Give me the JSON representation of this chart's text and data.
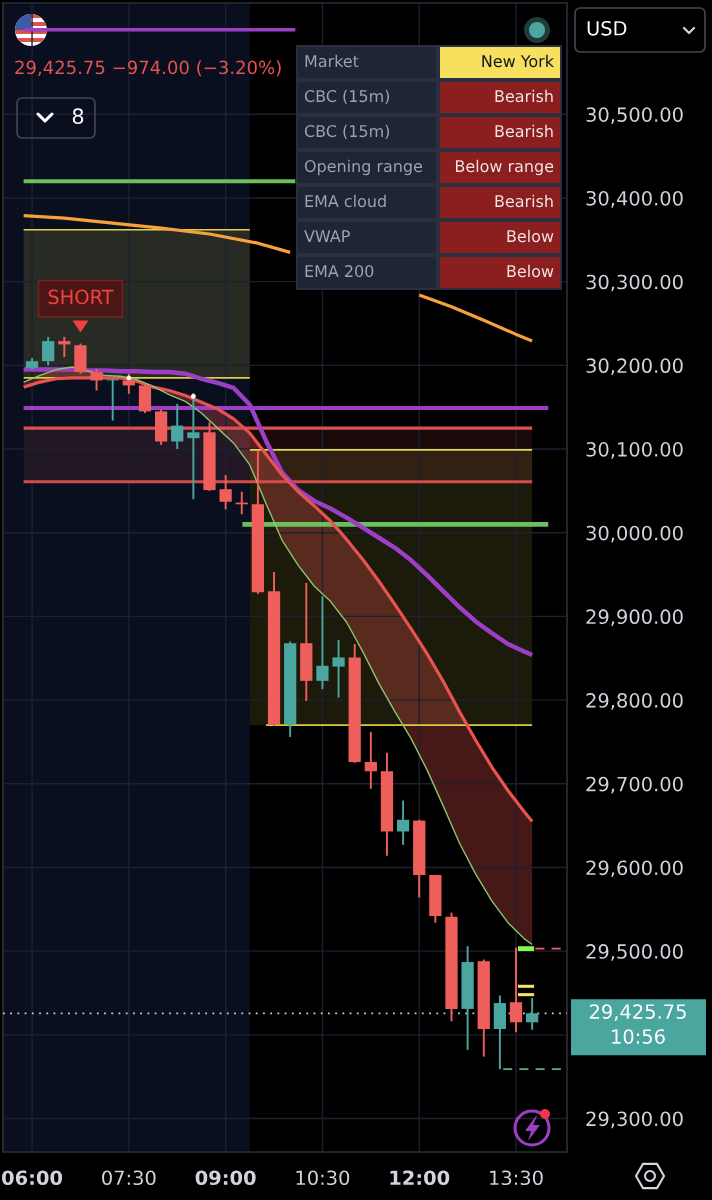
{
  "chart_data": [
    {
      "type": "candlestick",
      "x": [
        6.0,
        6.25,
        6.5,
        6.75,
        7.0,
        7.25,
        7.5,
        7.75,
        8.0,
        8.25,
        8.5,
        8.75,
        9.0,
        9.25,
        9.5,
        9.75,
        10.0,
        10.25,
        10.5,
        10.75,
        11.0,
        11.25,
        11.5,
        11.75,
        12.0,
        12.25,
        12.5,
        12.75,
        13.0,
        13.25,
        13.5,
        13.75
      ],
      "ohlc": [
        [
          30197,
          30209,
          30195,
          30205
        ],
        [
          30205,
          30234,
          30200,
          30229
        ],
        [
          30229,
          30234,
          30210,
          30225
        ],
        [
          30224,
          30226,
          30190,
          30192
        ],
        [
          30192,
          30196,
          30170,
          30182
        ],
        [
          30182,
          30184,
          30134,
          30183
        ],
        [
          30182,
          30190,
          30166,
          30176
        ],
        [
          30176,
          30178,
          30143,
          30145
        ],
        [
          30145,
          30147,
          30105,
          30109
        ],
        [
          30109,
          30154,
          30100,
          30128
        ],
        [
          30113,
          30167,
          30040,
          30120
        ],
        [
          30120,
          30132,
          30050,
          30051
        ],
        [
          30052,
          30069,
          30028,
          30037
        ],
        [
          30036,
          30049,
          30022,
          30034
        ],
        [
          30034,
          30098,
          29927,
          29929
        ],
        [
          29930,
          29953,
          29769,
          29771
        ],
        [
          29771,
          29870,
          29756,
          29868
        ],
        [
          29868,
          29940,
          29799,
          29823
        ],
        [
          29823,
          29924,
          29813,
          29841
        ],
        [
          29840,
          29872,
          29803,
          29851
        ],
        [
          29851,
          29867,
          29725,
          29726
        ],
        [
          29726,
          29762,
          29694,
          29715
        ],
        [
          29715,
          29737,
          29614,
          29643
        ],
        [
          29643,
          29680,
          29627,
          29657
        ],
        [
          29656,
          29657,
          29564,
          29591
        ],
        [
          29591,
          29591,
          29534,
          29542
        ],
        [
          29541,
          29546,
          29416,
          29431
        ],
        [
          29431,
          29506,
          29382,
          29487
        ],
        [
          29488,
          29490,
          29374,
          29407
        ],
        [
          29407,
          29447,
          29359,
          29438
        ],
        [
          29439,
          29504,
          29403,
          29415
        ],
        [
          29415,
          29444,
          29406,
          29425.75
        ]
      ],
      "colors": [
        "#4ba69f",
        "#4ba69f",
        "#ee5f5b",
        "#ee5f5b",
        "#ee5f5b",
        "#4ba69f",
        "#ee5f5b",
        "#ee5f5b",
        "#ee5f5b",
        "#4ba69f",
        "#4ba69f",
        "#ee5f5b",
        "#ee5f5b",
        "#ee5f5b",
        "#ee5f5b",
        "#ee5f5b",
        "#4ba69f",
        "#ee5f5b",
        "#4ba69f",
        "#4ba69f",
        "#ee5f5b",
        "#ee5f5b",
        "#ee5f5b",
        "#4ba69f",
        "#ee5f5b",
        "#ee5f5b",
        "#ee5f5b",
        "#4ba69f",
        "#ee5f5b",
        "#4ba69f",
        "#ee5f5b",
        "#4ba69f"
      ],
      "xlim": [
        5.55,
        14.29
      ],
      "ylim": [
        29260,
        30633
      ],
      "xticks": [
        {
          "value": 6,
          "label": "06:00"
        },
        {
          "value": 7.5,
          "label": "07:30"
        },
        {
          "value": 9,
          "label": "09:00"
        },
        {
          "value": 10.5,
          "label": "10:30"
        },
        {
          "value": 12,
          "label": "12:00"
        },
        {
          "value": 13.5,
          "label": "13:30"
        }
      ],
      "yticks": [
        {
          "value": 29300,
          "label": "29,300.00"
        },
        {
          "value": 29400,
          "label": null
        },
        {
          "value": 29500,
          "label": "29,500.00"
        },
        {
          "value": 29600,
          "label": "29,600.00"
        },
        {
          "value": 29700,
          "label": "29,700.00"
        },
        {
          "value": 29800,
          "label": "29,800.00"
        },
        {
          "value": 29900,
          "label": "29,900.00"
        },
        {
          "value": 30000,
          "label": "30,000.00"
        },
        {
          "value": 30100,
          "label": "30,100.00"
        },
        {
          "value": 30200,
          "label": "30,200.00"
        },
        {
          "value": 30300,
          "label": "30,300.00"
        },
        {
          "value": 30400,
          "label": "30,400.00"
        },
        {
          "value": 30500,
          "label": "30,500.00"
        }
      ],
      "grid": true,
      "bands": [
        {
          "axis": "x",
          "from": 5.55,
          "to": 9.375,
          "color": "#0a0f1f"
        }
      ],
      "ref_lines": [
        {
          "axis": "y",
          "value": 29425.75,
          "label": "29,425.75",
          "color": "#c9ccd4",
          "line_style": "dotted"
        }
      ],
      "annotations": [
        "29,425.75 −974.00 (−3.20%)",
        "8",
        "USD",
        "10:56",
        {
          "text": "SHORT",
          "x": 6.75,
          "y": 30226
        }
      ],
      "series": [
        {
          "type": "line",
          "color": "#e3d34a",
          "x": [
            5.87,
            9.375
          ],
          "values": [
            30362,
            30362
          ],
          "lower": [
            30185,
            30185
          ],
          "upper": [
            30362,
            30362
          ]
        },
        {
          "type": "line",
          "color": "#dccd46",
          "x": [
            5.87,
            9.375
          ],
          "values": [
            30185,
            30185
          ]
        },
        {
          "type": "line",
          "color": "#e6d650",
          "x": [
            9.375,
            13.75
          ],
          "values": [
            30099,
            30099
          ],
          "lower": [
            29770,
            29770
          ],
          "upper": [
            30099,
            30099
          ]
        },
        {
          "type": "line",
          "color": "#d9ca44",
          "x": [
            9.625,
            13.75
          ],
          "values": [
            29770,
            29770
          ]
        },
        {
          "type": "line",
          "color": "#d8504f",
          "x": [
            5.87,
            13.75
          ],
          "values": [
            30125,
            30125
          ],
          "lower": [
            30061,
            30061
          ],
          "upper": [
            30125,
            30125
          ]
        },
        {
          "type": "line",
          "color": "#d24c4b",
          "x": [
            5.87,
            13.75
          ],
          "values": [
            30061,
            30061
          ]
        },
        {
          "type": "line",
          "color": "#9b3fc4",
          "x": [
            5.87,
            14.0
          ],
          "values": [
            30149,
            30149
          ]
        },
        {
          "type": "line",
          "color": "#6cbf5c",
          "x": [
            9.26,
            14.0
          ],
          "values": [
            30010,
            30010
          ]
        },
        {
          "type": "line",
          "color": "#6cbf5c",
          "x": [
            5.87,
            10.08
          ],
          "values": [
            30420,
            30420
          ]
        },
        {
          "type": "line",
          "color": "#9b3fc4",
          "x": [
            5.87,
            10.08
          ],
          "values": [
            30601,
            30601
          ]
        },
        {
          "type": "line",
          "color": "#f7a13a",
          "x": [
            5.87,
            6.5,
            7.25,
            8.0,
            8.75,
            9.5,
            10.0,
            11.0,
            12.0,
            12.5,
            13.0,
            13.5,
            13.75
          ],
          "values": [
            30379,
            30376,
            30370,
            30364,
            30357,
            30346,
            30335,
            null,
            30284,
            30270,
            30254,
            30237,
            30229
          ]
        },
        {
          "type": "line",
          "color": "#9b3fc4",
          "x": [
            5.87,
            6.125,
            6.375,
            6.625,
            6.875,
            7.125,
            7.375,
            7.625,
            7.875,
            8.125,
            8.375,
            8.625,
            8.875,
            9.125,
            9.375,
            9.625,
            9.875,
            10.125,
            10.375,
            10.625,
            10.875,
            11.125,
            11.375,
            11.625,
            11.875,
            12.125,
            12.375,
            12.625,
            12.875,
            13.125,
            13.375,
            13.625,
            13.75
          ],
          "values": [
            30195,
            30195,
            30195,
            30195,
            30194,
            30194,
            30193,
            30193,
            30192,
            30192,
            30190,
            30184,
            30179,
            30173,
            30153,
            30110,
            30072,
            30051,
            30038,
            30029,
            30018,
            30006,
            29994,
            29982,
            29967,
            29949,
            29930,
            29911,
            29894,
            29880,
            29867,
            29858,
            29854
          ]
        },
        {
          "type": "line",
          "color": "#e8524f",
          "x": [
            5.87,
            6.125,
            6.375,
            6.625,
            6.875,
            7.125,
            7.375,
            7.625,
            7.875,
            8.125,
            8.375,
            8.625,
            8.875,
            9.125,
            9.375,
            9.625,
            9.875,
            10.125,
            10.375,
            10.625,
            10.875,
            11.125,
            11.375,
            11.625,
            11.875,
            12.125,
            12.375,
            12.625,
            12.875,
            13.125,
            13.375,
            13.625,
            13.75
          ],
          "values": [
            30174,
            30180,
            30184,
            30185,
            30185,
            30185,
            30185,
            30181,
            30174,
            30170,
            30164,
            30156,
            30148,
            30136,
            30119,
            30094,
            30069,
            30049,
            30032,
            30014,
            29992,
            29968,
            29942,
            29914,
            29885,
            29855,
            29822,
            29786,
            29752,
            29720,
            29692,
            29667,
            29655
          ],
          "lower": [
            30180,
            30188,
            30195,
            30198,
            30193,
            30188,
            30187,
            30183,
            30175,
            30165,
            30157,
            30143,
            30125,
            30107,
            30081,
            30035,
            29991,
            29961,
            29936,
            29918,
            29893,
            29858,
            29820,
            29786,
            29754,
            29716,
            29673,
            29629,
            29592,
            29560,
            29534,
            29515,
            29508
          ],
          "upper": [
            30174,
            30180,
            30184,
            30185,
            30185,
            30185,
            30185,
            30181,
            30174,
            30170,
            30164,
            30156,
            30148,
            30136,
            30119,
            30094,
            30069,
            30049,
            30032,
            30014,
            29992,
            29968,
            29942,
            29914,
            29885,
            29855,
            29822,
            29786,
            29752,
            29720,
            29692,
            29667,
            29655
          ]
        },
        {
          "type": "line",
          "color": "#8cc46a",
          "x": [
            5.87,
            6.125,
            6.375,
            6.625,
            6.875,
            7.125,
            7.375,
            7.625,
            7.875,
            8.125,
            8.375,
            8.625,
            8.875,
            9.125,
            9.375,
            9.625,
            9.875,
            10.125,
            10.375,
            10.625,
            10.875,
            11.125,
            11.375,
            11.625,
            11.875,
            12.125,
            12.375,
            12.625,
            12.875,
            13.125,
            13.375,
            13.625,
            13.75
          ],
          "values": [
            30180,
            30188,
            30195,
            30198,
            30193,
            30188,
            30187,
            30183,
            30175,
            30165,
            30157,
            30143,
            30125,
            30107,
            30081,
            30035,
            29991,
            29961,
            29936,
            29918,
            29893,
            29858,
            29820,
            29786,
            29754,
            29716,
            29673,
            29629,
            29592,
            29560,
            29534,
            29515,
            29508
          ]
        },
        {
          "type": "scatter",
          "color": "#ffffff",
          "marker": "circle",
          "x": [
            7.5,
            8.5
          ],
          "values": [
            30185,
            30163
          ]
        },
        {
          "type": "line",
          "color": "#5fae7e",
          "line_style": "dashed",
          "x": [
            13.3,
            14.29
          ],
          "values": [
            29359,
            29359
          ]
        },
        {
          "type": "line",
          "color": "#f0625e",
          "line_style": "dashed",
          "x": [
            13.8,
            14.25
          ],
          "values": [
            29503,
            29503
          ]
        },
        {
          "type": "line",
          "color": "#8cf55a",
          "x": [
            13.53,
            13.78
          ],
          "values": [
            29503,
            29503
          ]
        },
        {
          "type": "line",
          "color": "#f5e463",
          "x": [
            13.53,
            13.78
          ],
          "values": [
            29458,
            29458
          ]
        },
        {
          "type": "line",
          "color": "#f5e463",
          "x": [
            13.53,
            13.78
          ],
          "values": [
            29448,
            29448
          ]
        }
      ]
    },
    {
      "type": "other",
      "categories": [
        "Market",
        "CBC (15m)",
        "CBC (15m)",
        "Opening range",
        "EMA cloud",
        "VWAP",
        "EMA 200"
      ],
      "annotations": [
        "New York",
        "Bearish",
        "Bearish",
        "Below range",
        "Bearish",
        "Below",
        "Below"
      ],
      "colors": [
        "#f6e05e",
        "#8b1e1e",
        "#8b1e1e",
        "#8b1e1e",
        "#8b1e1e",
        "#8b1e1e",
        "#8b1e1e"
      ]
    }
  ]
}
